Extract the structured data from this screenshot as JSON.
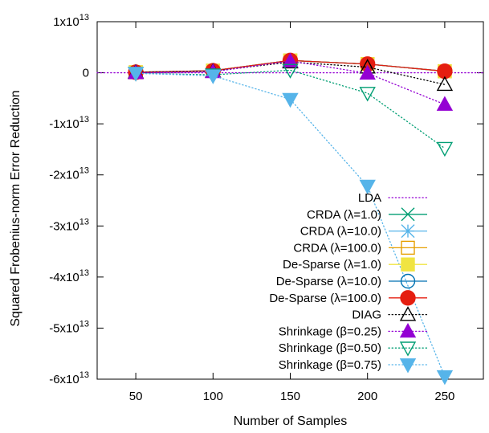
{
  "chart_data": {
    "type": "line",
    "title": "",
    "xlabel": "Number of Samples",
    "ylabel": "Squared Frobenius-norm Error Reduction",
    "x": [
      50,
      100,
      150,
      200,
      250
    ],
    "xlim": [
      25,
      275
    ],
    "ylim": [
      -60000000000000.0,
      10000000000000.0
    ],
    "xticks": [
      50,
      100,
      150,
      200,
      250
    ],
    "yticks": [
      {
        "value": 10000000000000.0,
        "base": "1x10",
        "exp": "13"
      },
      {
        "value": 0,
        "base": "0",
        "exp": ""
      },
      {
        "value": -10000000000000.0,
        "base": "-1x10",
        "exp": "13"
      },
      {
        "value": -20000000000000.0,
        "base": "-2x10",
        "exp": "13"
      },
      {
        "value": -30000000000000.0,
        "base": "-3x10",
        "exp": "13"
      },
      {
        "value": -40000000000000.0,
        "base": "-4x10",
        "exp": "13"
      },
      {
        "value": -50000000000000.0,
        "base": "-5x10",
        "exp": "13"
      },
      {
        "value": -60000000000000.0,
        "base": "-6x10",
        "exp": "13"
      }
    ],
    "grid": false,
    "legend_position": "bottom-right",
    "series": [
      {
        "name": "LDA",
        "color": "#9400d3",
        "dash": "dotted",
        "marker": "none",
        "values": [
          0,
          0,
          0,
          0,
          0
        ]
      },
      {
        "name": "CRDA (λ=1.0)",
        "color": "#009e73",
        "dash": "solid",
        "marker": "x",
        "values": [
          100000000000.0,
          400000000000.0,
          2400000000000.0,
          1700000000000.0,
          300000000000.0
        ]
      },
      {
        "name": "CRDA (λ=10.0)",
        "color": "#56b4e9",
        "dash": "solid",
        "marker": "asterisk",
        "values": [
          100000000000.0,
          400000000000.0,
          2400000000000.0,
          1700000000000.0,
          300000000000.0
        ]
      },
      {
        "name": "CRDA (λ=100.0)",
        "color": "#e69f00",
        "dash": "solid",
        "marker": "square-open",
        "values": [
          100000000000.0,
          400000000000.0,
          2400000000000.0,
          1700000000000.0,
          300000000000.0
        ]
      },
      {
        "name": "De-Sparse (λ=1.0)",
        "color": "#f0e442",
        "dash": "solid",
        "marker": "square-filled",
        "values": [
          100000000000.0,
          400000000000.0,
          2400000000000.0,
          1700000000000.0,
          300000000000.0
        ]
      },
      {
        "name": "De-Sparse (λ=10.0)",
        "color": "#0072b2",
        "dash": "solid",
        "marker": "circle-open",
        "values": [
          100000000000.0,
          400000000000.0,
          2400000000000.0,
          1700000000000.0,
          300000000000.0
        ]
      },
      {
        "name": "De-Sparse (λ=100.0)",
        "color": "#e51e10",
        "dash": "solid",
        "marker": "circle-filled",
        "values": [
          100000000000.0,
          400000000000.0,
          2400000000000.0,
          1700000000000.0,
          300000000000.0
        ]
      },
      {
        "name": "DIAG",
        "color": "#000000",
        "dash": "dotted",
        "marker": "triangle-open",
        "values": [
          100000000000.0,
          300000000000.0,
          2100000000000.0,
          1100000000000.0,
          -2300000000000.0
        ]
      },
      {
        "name": "Shrinkage (β=0.25)",
        "color": "#9400d3",
        "dash": "dotted",
        "marker": "triangle-filled",
        "values": [
          0,
          200000000000.0,
          2300000000000.0,
          -100000000000.0,
          -6200000000000.0
        ]
      },
      {
        "name": "Shrinkage (β=0.50)",
        "color": "#009e73",
        "dash": "dotted",
        "marker": "triangle-down-open",
        "values": [
          -100000000000.0,
          -400000000000.0,
          500000000000.0,
          -4000000000000.0,
          -14800000000000.0
        ]
      },
      {
        "name": "Shrinkage (β=0.75)",
        "color": "#56b4e9",
        "dash": "dotted",
        "marker": "triangle-down-filled",
        "values": [
          -100000000000.0,
          -600000000000.0,
          -5200000000000.0,
          -22200000000000.0,
          -59500000000000.0
        ]
      }
    ]
  }
}
